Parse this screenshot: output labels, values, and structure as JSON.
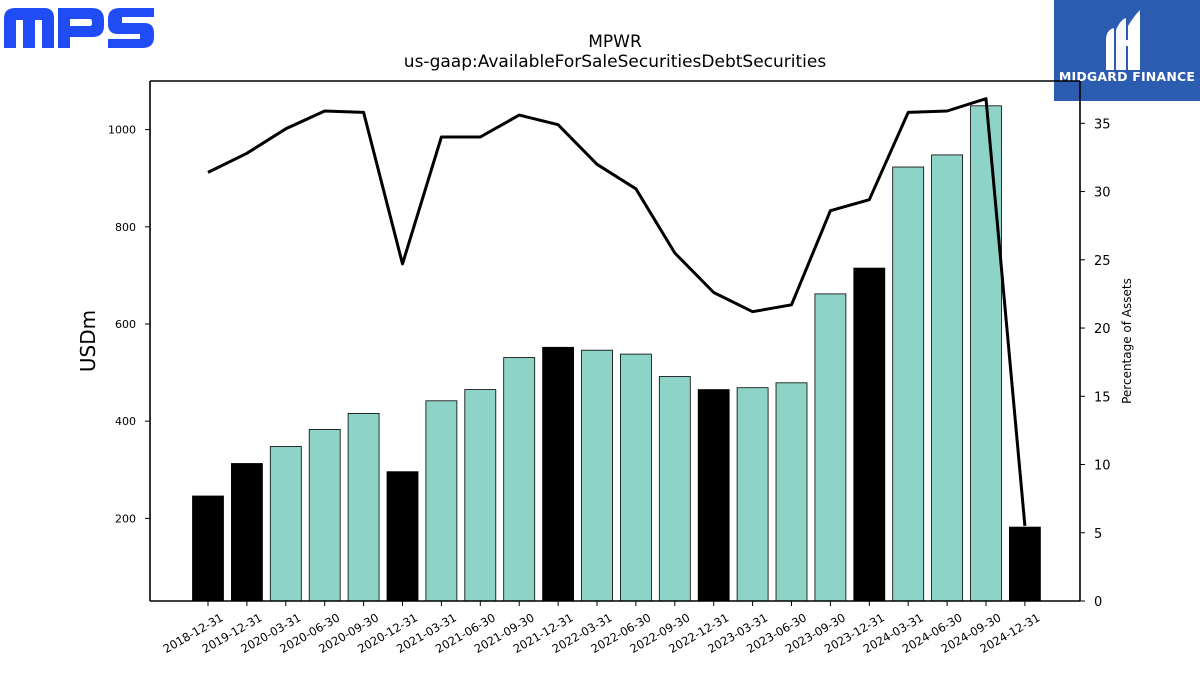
{
  "logos": {
    "left_text": "MPS",
    "right_text": "MIDGARD FINANCE",
    "brand_blue": "#1f4cf5",
    "panel_blue": "#2c5caf"
  },
  "chart_data": {
    "type": "bar",
    "title": "MPWR",
    "subtitle": "us-gaap:AvailableForSaleSecuritiesDebtSecurities",
    "ylabel": "USDm",
    "y2label": "Percentage of Assets",
    "categories": [
      "2018-12-31",
      "2019-12-31",
      "2020-03-31",
      "2020-06-30",
      "2020-09-30",
      "2020-12-31",
      "2021-03-31",
      "2021-06-30",
      "2021-09-30",
      "2021-12-31",
      "2022-03-31",
      "2022-06-30",
      "2022-09-30",
      "2022-12-31",
      "2023-03-31",
      "2023-06-30",
      "2023-09-30",
      "2023-12-31",
      "2024-03-31",
      "2024-06-30",
      "2024-09-30",
      "2024-12-31"
    ],
    "series": [
      {
        "values": [
          246,
          313,
          348,
          383,
          416,
          296,
          442,
          465,
          531,
          552,
          546,
          538,
          492,
          465,
          469,
          479,
          662,
          715,
          923,
          948,
          1049,
          182
        ],
        "fill_colors": [
          "#000000",
          "#000000",
          "#8dd3c7",
          "#8dd3c7",
          "#8dd3c7",
          "#000000",
          "#8dd3c7",
          "#8dd3c7",
          "#8dd3c7",
          "#000000",
          "#8dd3c7",
          "#8dd3c7",
          "#8dd3c7",
          "#000000",
          "#8dd3c7",
          "#8dd3c7",
          "#8dd3c7",
          "#000000",
          "#8dd3c7",
          "#8dd3c7",
          "#8dd3c7",
          "#000000"
        ]
      },
      {
        "axis": "right",
        "type": "line",
        "color": "#000000",
        "values": [
          31.4,
          32.8,
          34.6,
          35.9,
          35.8,
          24.7,
          34.0,
          34.0,
          35.6,
          34.9,
          32.0,
          30.2,
          25.5,
          22.6,
          21.2,
          21.7,
          28.6,
          29.4,
          35.8,
          35.9,
          36.8,
          5.5
        ]
      }
    ],
    "ylim": [
      30,
      1100
    ],
    "yticks": [
      200,
      400,
      600,
      800,
      1000
    ],
    "y2lim": [
      0,
      38.1
    ],
    "y2ticks": [
      0,
      5,
      10,
      15,
      20,
      25,
      30,
      35
    ],
    "grid": false,
    "legend": "none"
  }
}
